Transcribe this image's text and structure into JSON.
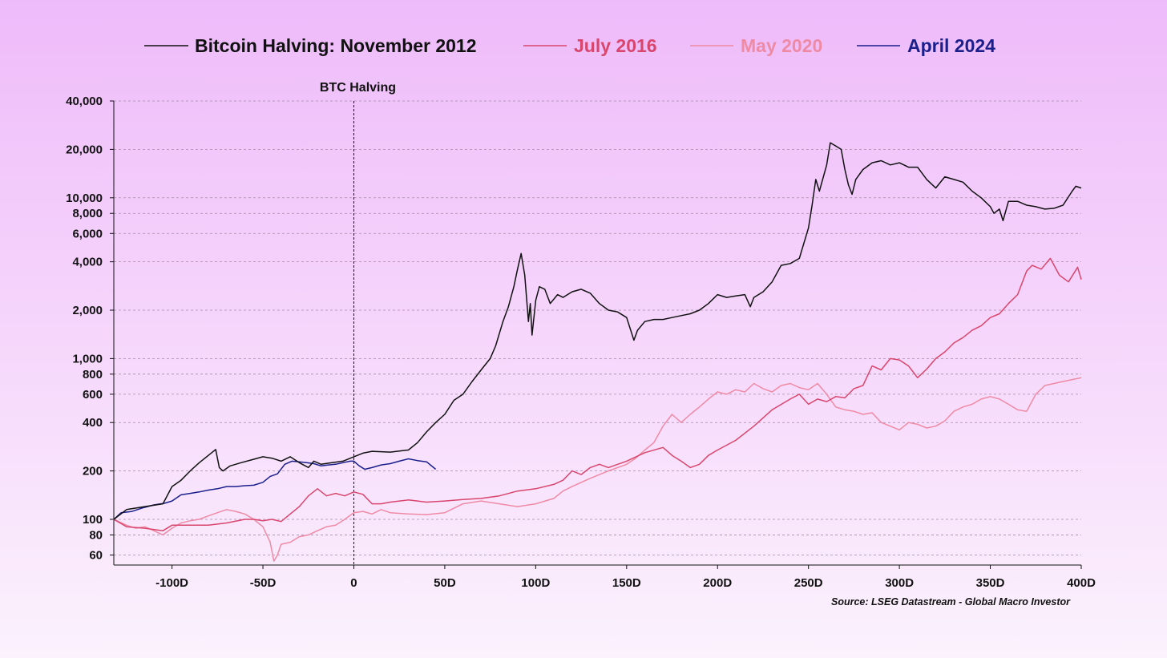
{
  "chart_data": {
    "type": "line",
    "title": "",
    "xlabel": "",
    "ylabel": "",
    "yscale": "log",
    "xlim": [
      -132,
      400
    ],
    "ylim": [
      50,
      40000
    ],
    "x_ticks": [
      -100,
      -50,
      0,
      50,
      100,
      150,
      200,
      250,
      300,
      350,
      400
    ],
    "x_tick_labels": [
      "-100D",
      "-50D",
      "0",
      "50D",
      "100D",
      "150D",
      "200D",
      "250D",
      "300D",
      "350D",
      "400D"
    ],
    "y_ticks": [
      60,
      80,
      100,
      200,
      400,
      600,
      800,
      1000,
      2000,
      4000,
      6000,
      8000,
      10000,
      20000,
      40000
    ],
    "y_tick_labels": [
      "60",
      "80",
      "100",
      "200",
      "400",
      "600",
      "800",
      "1,000",
      "2,000",
      "4,000",
      "6,000",
      "8,000",
      "10,000",
      "20,000",
      "40,000"
    ],
    "grid": "horizontal-dashed",
    "legend_position": "top",
    "annotation": {
      "x": 0,
      "label": "BTC Halving"
    },
    "source": "Source: LSEG Datastream - Global Macro Investor",
    "series": [
      {
        "name": "Bitcoin Halving: November 2012",
        "color": "#111111",
        "x": [
          -132,
          -125,
          -115,
          -105,
          -100,
          -95,
          -90,
          -85,
          -80,
          -76,
          -74,
          -72,
          -68,
          -62,
          -56,
          -50,
          -45,
          -40,
          -35,
          -30,
          -25,
          -22,
          -18,
          -12,
          -6,
          0,
          5,
          10,
          20,
          30,
          35,
          40,
          45,
          50,
          55,
          60,
          65,
          70,
          75,
          78,
          82,
          85,
          88,
          90,
          92,
          94,
          96,
          97,
          98,
          100,
          102,
          105,
          108,
          112,
          115,
          120,
          125,
          130,
          135,
          140,
          145,
          150,
          154,
          156,
          160,
          165,
          170,
          175,
          180,
          185,
          190,
          195,
          200,
          205,
          210,
          215,
          218,
          220,
          225,
          230,
          235,
          240,
          245,
          250,
          252,
          254,
          256,
          260,
          262,
          265,
          268,
          270,
          272,
          274,
          276,
          280,
          285,
          290,
          295,
          300,
          305,
          310,
          315,
          320,
          325,
          330,
          335,
          340,
          345,
          350,
          352,
          355,
          357,
          360,
          365,
          370,
          375,
          380,
          385,
          390,
          395,
          397,
          400
        ],
        "values": [
          100,
          115,
          120,
          125,
          160,
          175,
          200,
          225,
          250,
          272,
          210,
          200,
          215,
          225,
          235,
          245,
          240,
          230,
          245,
          225,
          210,
          230,
          220,
          225,
          230,
          245,
          258,
          265,
          262,
          270,
          300,
          350,
          400,
          450,
          550,
          600,
          720,
          850,
          1000,
          1200,
          1700,
          2100,
          2800,
          3600,
          4500,
          3300,
          1700,
          2200,
          1400,
          2300,
          2800,
          2700,
          2200,
          2500,
          2400,
          2600,
          2700,
          2550,
          2200,
          2000,
          1950,
          1800,
          1300,
          1500,
          1700,
          1750,
          1750,
          1800,
          1850,
          1900,
          2000,
          2200,
          2500,
          2400,
          2450,
          2500,
          2100,
          2400,
          2600,
          3000,
          3800,
          3900,
          4200,
          6500,
          9000,
          13000,
          11000,
          16000,
          22000,
          21000,
          20000,
          15000,
          12000,
          10500,
          13000,
          15000,
          16500,
          17000,
          16000,
          16500,
          15500,
          15500,
          13000,
          11500,
          13500,
          13000,
          12500,
          11000,
          10000,
          8800,
          8000,
          8500,
          7200,
          9500,
          9500,
          9000,
          8800,
          8500,
          8600,
          9000,
          11000,
          11800,
          11500
        ]
      },
      {
        "name": "July 2016",
        "color": "#d9466d",
        "x": [
          -132,
          -125,
          -115,
          -105,
          -100,
          -90,
          -80,
          -70,
          -60,
          -55,
          -50,
          -45,
          -40,
          -30,
          -25,
          -20,
          -15,
          -10,
          -5,
          0,
          5,
          10,
          15,
          20,
          30,
          40,
          50,
          60,
          70,
          80,
          90,
          100,
          110,
          115,
          120,
          125,
          130,
          135,
          140,
          150,
          160,
          170,
          175,
          180,
          185,
          190,
          195,
          200,
          210,
          220,
          230,
          240,
          245,
          250,
          255,
          260,
          265,
          270,
          275,
          280,
          285,
          290,
          295,
          300,
          305,
          310,
          315,
          320,
          325,
          330,
          335,
          340,
          345,
          350,
          355,
          360,
          365,
          370,
          373,
          378,
          383,
          388,
          393,
          396,
          398,
          400
        ],
        "values": [
          100,
          90,
          88,
          85,
          92,
          92,
          92,
          95,
          100,
          100,
          98,
          100,
          97,
          120,
          140,
          155,
          140,
          145,
          140,
          148,
          143,
          125,
          125,
          128,
          132,
          128,
          130,
          133,
          135,
          140,
          150,
          155,
          165,
          175,
          200,
          190,
          210,
          220,
          210,
          230,
          260,
          280,
          250,
          230,
          210,
          220,
          250,
          270,
          310,
          380,
          480,
          560,
          600,
          520,
          560,
          540,
          580,
          570,
          650,
          680,
          900,
          850,
          1000,
          980,
          900,
          760,
          860,
          1000,
          1100,
          1250,
          1350,
          1500,
          1600,
          1800,
          1900,
          2200,
          2500,
          3500,
          3800,
          3600,
          4200,
          3300,
          3000,
          3400,
          3700,
          3100
        ]
      },
      {
        "name": "May 2020",
        "color": "#ef8aa5",
        "x": [
          -132,
          -125,
          -120,
          -115,
          -110,
          -105,
          -100,
          -95,
          -90,
          -85,
          -80,
          -75,
          -70,
          -65,
          -60,
          -55,
          -50,
          -46,
          -44,
          -42,
          -40,
          -35,
          -30,
          -25,
          -20,
          -15,
          -10,
          -5,
          0,
          5,
          10,
          15,
          20,
          30,
          40,
          50,
          60,
          70,
          80,
          90,
          100,
          110,
          115,
          120,
          130,
          140,
          150,
          155,
          160,
          165,
          170,
          175,
          180,
          185,
          190,
          195,
          200,
          205,
          210,
          215,
          220,
          225,
          230,
          235,
          240,
          245,
          250,
          255,
          260,
          265,
          270,
          275,
          280,
          285,
          290,
          295,
          300,
          305,
          310,
          315,
          320,
          325,
          330,
          335,
          340,
          345,
          350,
          355,
          360,
          365,
          370,
          375,
          380,
          385,
          390,
          395,
          400
        ],
        "values": [
          100,
          92,
          88,
          90,
          85,
          80,
          88,
          95,
          98,
          100,
          105,
          110,
          115,
          112,
          108,
          100,
          90,
          72,
          55,
          60,
          70,
          72,
          78,
          80,
          85,
          90,
          92,
          100,
          110,
          112,
          108,
          115,
          110,
          108,
          107,
          110,
          125,
          130,
          125,
          120,
          125,
          135,
          150,
          160,
          180,
          200,
          220,
          240,
          270,
          300,
          380,
          450,
          400,
          450,
          500,
          560,
          620,
          600,
          640,
          620,
          700,
          650,
          620,
          680,
          700,
          660,
          640,
          700,
          600,
          500,
          480,
          470,
          450,
          460,
          400,
          380,
          360,
          400,
          390,
          370,
          380,
          410,
          470,
          500,
          520,
          560,
          580,
          560,
          520,
          480,
          470,
          600,
          680,
          700,
          720,
          740,
          760
        ]
      },
      {
        "name": "April 2024",
        "color": "#1a1f8c",
        "x": [
          -132,
          -128,
          -122,
          -116,
          -110,
          -104,
          -100,
          -95,
          -90,
          -85,
          -80,
          -75,
          -70,
          -65,
          -60,
          -55,
          -50,
          -46,
          -42,
          -38,
          -34,
          -30,
          -26,
          -22,
          -18,
          -14,
          -10,
          -6,
          -2,
          0,
          3,
          6,
          10,
          15,
          20,
          25,
          30,
          35,
          40,
          45
        ],
        "values": [
          100,
          110,
          112,
          118,
          123,
          126,
          130,
          142,
          145,
          148,
          152,
          155,
          160,
          160,
          162,
          163,
          170,
          185,
          192,
          220,
          230,
          228,
          225,
          222,
          215,
          218,
          220,
          225,
          230,
          230,
          215,
          205,
          210,
          218,
          222,
          230,
          238,
          232,
          228,
          205
        ]
      }
    ]
  }
}
